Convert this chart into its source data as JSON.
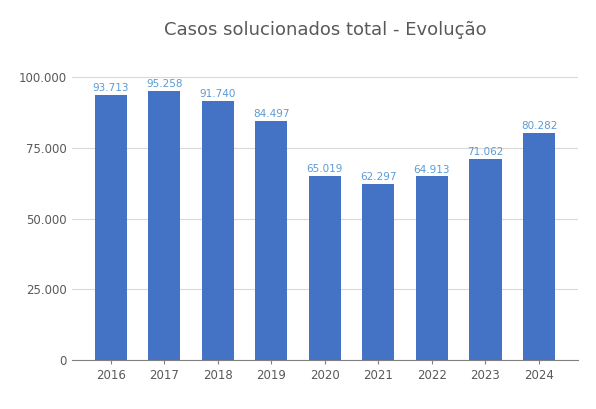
{
  "title": "Casos solucionados total - Evolução",
  "categories": [
    "2016",
    "2017",
    "2018",
    "2019",
    "2020",
    "2021",
    "2022",
    "2023",
    "2024"
  ],
  "values": [
    93713,
    95258,
    91740,
    84497,
    65019,
    62297,
    64913,
    71062,
    80282
  ],
  "labels": [
    "93.713",
    "95.258",
    "91.740",
    "84.497",
    "65.019",
    "62.297",
    "64.913",
    "71.062",
    "80.282"
  ],
  "bar_color": "#4472C4",
  "label_color": "#5B9BD5",
  "title_color": "#595959",
  "axis_color": "#808080",
  "tick_color": "#595959",
  "background_color": "#FFFFFF",
  "grid_color": "#D9D9D9",
  "yticks": [
    0,
    25000,
    50000,
    75000,
    100000
  ],
  "ytick_labels": [
    "0",
    "25.000",
    "50.000",
    "75.000",
    "100.000"
  ],
  "ylim": [
    0,
    110000
  ],
  "title_fontsize": 13,
  "label_fontsize": 7.5,
  "tick_fontsize": 8.5
}
